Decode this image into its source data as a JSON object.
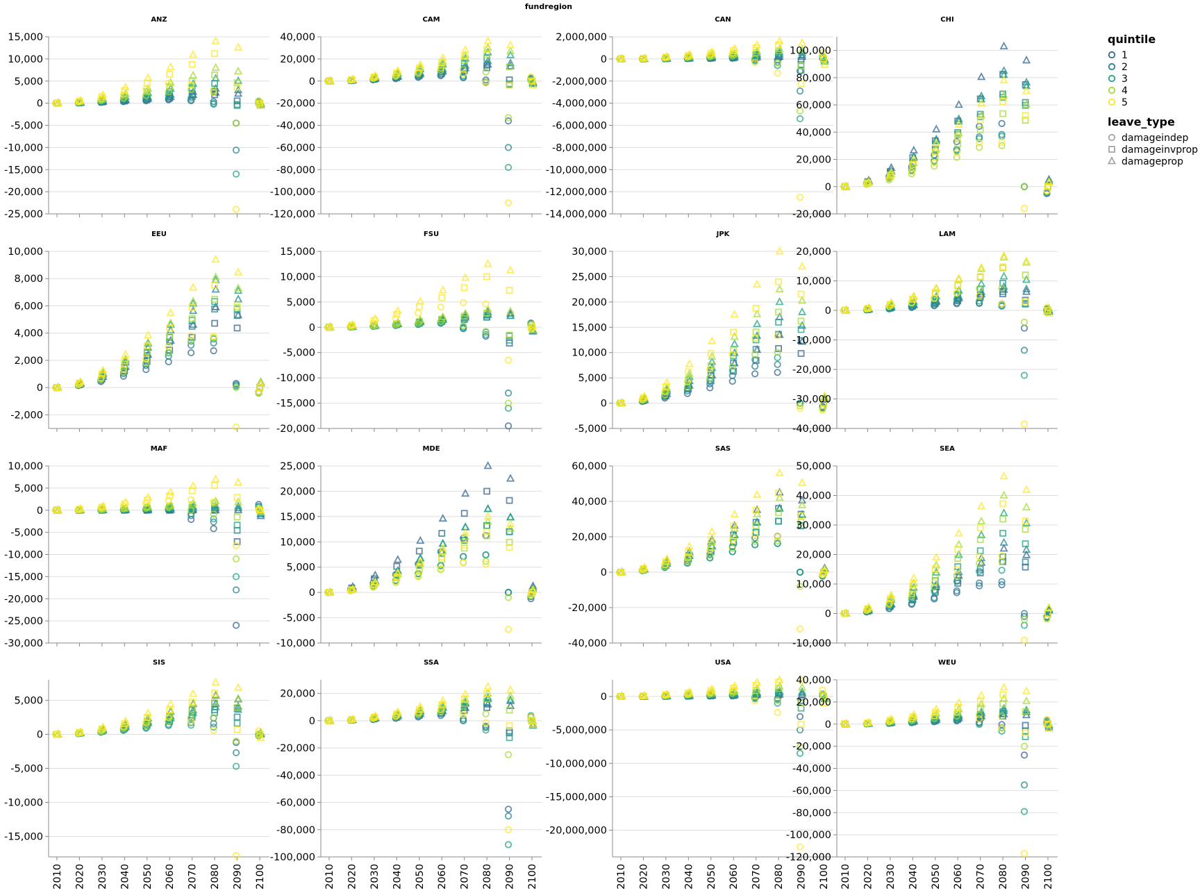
{
  "chart_data": {
    "type": "scatter",
    "header": "fundregion",
    "x": [
      2010,
      2020,
      2030,
      2040,
      2050,
      2060,
      2070,
      2080,
      2090,
      2100
    ],
    "grid": true,
    "legend_position": "right",
    "legends": {
      "quintile": {
        "title": "quintile",
        "entries": [
          {
            "label": "1",
            "color": "#30668d"
          },
          {
            "label": "2",
            "color": "#25848e"
          },
          {
            "label": "3",
            "color": "#20a386"
          },
          {
            "label": "4",
            "color": "#a5db36"
          },
          {
            "label": "5",
            "color": "#fde725"
          }
        ]
      },
      "leave_type": {
        "title": "leave_type",
        "entries": [
          {
            "label": "damageindep",
            "shape": "circle"
          },
          {
            "label": "damageinvprop",
            "shape": "square"
          },
          {
            "label": "damageprop",
            "shape": "triangle"
          }
        ]
      }
    },
    "facets": [
      {
        "region": "ANZ",
        "ylim": [
          -25000,
          15000
        ],
        "yticks": [
          15000,
          10000,
          5000,
          0,
          -5000,
          -10000,
          -15000,
          -20000,
          -25000
        ],
        "ranges": {
          "1": [
            2400,
            -4500
          ],
          "2": [
            3300,
            -10600
          ],
          "3": [
            5600,
            -16000
          ],
          "4": [
            8000,
            -4500
          ],
          "5": [
            14000,
            -24000
          ]
        }
      },
      {
        "region": "CAM",
        "ylim": [
          -120000,
          40000
        ],
        "yticks": [
          40000,
          20000,
          0,
          -20000,
          -40000,
          -60000,
          -80000,
          -100000,
          -120000
        ],
        "ranges": {
          "1": [
            15000,
            -36000
          ],
          "2": [
            18000,
            -60000
          ],
          "3": [
            26000,
            -78000
          ],
          "4": [
            30000,
            -33000
          ],
          "5": [
            36000,
            -110000
          ]
        }
      },
      {
        "region": "CAN",
        "ylim": [
          -14000000,
          2000000
        ],
        "yticks": [
          2000000,
          0,
          -2000000,
          -4000000,
          -6000000,
          -8000000,
          -10000000,
          -12000000,
          -14000000
        ],
        "ranges": {
          "1": [
            200000,
            -1100000
          ],
          "2": [
            400000,
            -2900000
          ],
          "3": [
            600000,
            -5400000
          ],
          "4": [
            900000,
            -4700000
          ],
          "5": [
            1600000,
            -12500000
          ]
        }
      },
      {
        "region": "CHI",
        "ylim": [
          -20000,
          110000
        ],
        "yticks": [
          100000,
          80000,
          60000,
          40000,
          20000,
          0,
          -20000
        ],
        "ranges": {
          "1": [
            103000,
            0
          ],
          "2": [
            85000,
            0
          ],
          "3": [
            82000,
            0
          ],
          "4": [
            67000,
            0
          ],
          "5": [
            78000,
            -16000
          ]
        }
      },
      {
        "region": "EEU",
        "ylim": [
          -3000,
          10000
        ],
        "yticks": [
          10000,
          8000,
          6000,
          4000,
          2000,
          0,
          -2000
        ],
        "ranges": {
          "1": [
            5900,
            300
          ],
          "2": [
            7200,
            200
          ],
          "3": [
            7900,
            100
          ],
          "4": [
            8100,
            0
          ],
          "5": [
            9400,
            -2900
          ]
        }
      },
      {
        "region": "FSU",
        "ylim": [
          -20000,
          15000
        ],
        "yticks": [
          15000,
          10000,
          5000,
          0,
          -5000,
          -10000,
          -15000,
          -20000
        ],
        "ranges": {
          "1": [
            3000,
            -19500
          ],
          "2": [
            2500,
            -13000
          ],
          "3": [
            2500,
            -16000
          ],
          "4": [
            3500,
            -15000
          ],
          "5": [
            12500,
            -6500
          ]
        }
      },
      {
        "region": "JPK",
        "ylim": [
          -5000,
          30000
        ],
        "yticks": [
          30000,
          25000,
          20000,
          15000,
          10000,
          5000,
          0,
          -5000
        ],
        "ranges": {
          "1": [
            13500,
            0
          ],
          "2": [
            17000,
            0
          ],
          "3": [
            20000,
            0
          ],
          "4": [
            22500,
            -500
          ],
          "5": [
            30000,
            -1000
          ]
        }
      },
      {
        "region": "LAM",
        "ylim": [
          -40000,
          20000
        ],
        "yticks": [
          20000,
          10000,
          0,
          -10000,
          -20000,
          -30000,
          -40000
        ],
        "ranges": {
          "1": [
            7000,
            -6000
          ],
          "2": [
            8000,
            -13500
          ],
          "3": [
            11500,
            -22000
          ],
          "4": [
            18000,
            -4000
          ],
          "5": [
            18500,
            -38500
          ]
        }
      },
      {
        "region": "MAF",
        "ylim": [
          -30000,
          10000
        ],
        "yticks": [
          10000,
          5000,
          0,
          -5000,
          -10000,
          -15000,
          -20000,
          -25000,
          -30000
        ],
        "ranges": {
          "1": [
            0,
            -26000
          ],
          "2": [
            500,
            -18000
          ],
          "3": [
            1000,
            -15000
          ],
          "4": [
            2000,
            -11000
          ],
          "5": [
            7000,
            -8000
          ]
        }
      },
      {
        "region": "MDE",
        "ylim": [
          -10000,
          25000
        ],
        "yticks": [
          25000,
          20000,
          15000,
          10000,
          5000,
          0,
          -5000,
          -10000
        ],
        "ranges": {
          "1": [
            25000,
            0
          ],
          "2": [
            16500,
            0
          ],
          "3": [
            16500,
            0
          ],
          "4": [
            14000,
            -1000
          ],
          "5": [
            15000,
            -7300
          ]
        }
      },
      {
        "region": "SAS",
        "ylim": [
          -40000,
          60000
        ],
        "yticks": [
          60000,
          40000,
          20000,
          0,
          -20000,
          -40000
        ],
        "ranges": {
          "1": [
            45000,
            0
          ],
          "2": [
            36000,
            0
          ],
          "3": [
            36000,
            0
          ],
          "4": [
            42000,
            -8000
          ],
          "5": [
            56000,
            -32000
          ]
        }
      },
      {
        "region": "SEA",
        "ylim": [
          -10000,
          50000
        ],
        "yticks": [
          50000,
          40000,
          30000,
          20000,
          10000,
          0,
          -10000
        ],
        "ranges": {
          "1": [
            22000,
            -1000
          ],
          "2": [
            24000,
            0
          ],
          "3": [
            34000,
            -4000
          ],
          "4": [
            40000,
            -2000
          ],
          "5": [
            46500,
            -9000
          ]
        }
      },
      {
        "region": "SIS",
        "ylim": [
          -18000,
          8000
        ],
        "yticks": [
          5000,
          0,
          -5000,
          -10000,
          -15000
        ],
        "ranges": {
          "1": [
            5700,
            -1200
          ],
          "2": [
            4500,
            -2700
          ],
          "3": [
            4000,
            -4700
          ],
          "4": [
            5800,
            -1000
          ],
          "5": [
            7600,
            -17800
          ]
        }
      },
      {
        "region": "SSA",
        "ylim": [
          -100000,
          30000
        ],
        "yticks": [
          20000,
          0,
          -20000,
          -40000,
          -60000,
          -80000,
          -100000
        ],
        "ranges": {
          "1": [
            12000,
            -65000
          ],
          "2": [
            16000,
            -70000
          ],
          "3": [
            17000,
            -91000
          ],
          "4": [
            20000,
            -25000
          ],
          "5": [
            25000,
            -80000
          ]
        }
      },
      {
        "region": "USA",
        "ylim": [
          -24000000,
          2500000
        ],
        "yticks": [
          0,
          -5000000,
          -10000000,
          -15000000,
          -20000000
        ],
        "ranges": {
          "1": [
            300000,
            -3000000
          ],
          "2": [
            600000,
            -5000000
          ],
          "3": [
            800000,
            -8500000
          ],
          "4": [
            1500000,
            -7500000
          ],
          "5": [
            2700000,
            -22500000
          ]
        }
      },
      {
        "region": "WEU",
        "ylim": [
          -120000,
          40000
        ],
        "yticks": [
          40000,
          20000,
          0,
          -20000,
          -40000,
          -60000,
          -80000,
          -100000,
          -120000
        ],
        "ranges": {
          "1": [
            9000,
            -28000
          ],
          "2": [
            12000,
            -55000
          ],
          "3": [
            14000,
            -79000
          ],
          "4": [
            23000,
            -20000
          ],
          "5": [
            33000,
            -117000
          ]
        }
      }
    ]
  }
}
